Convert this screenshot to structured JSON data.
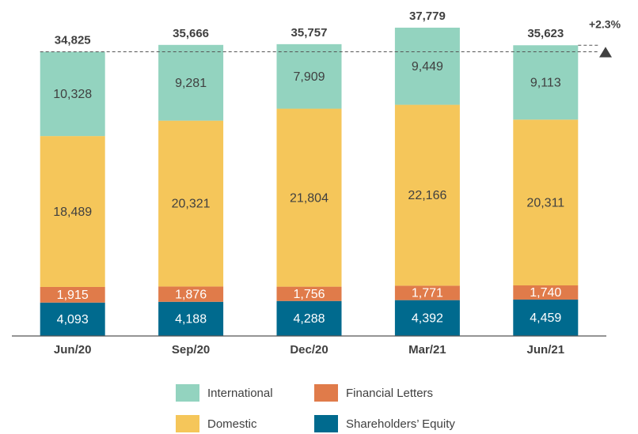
{
  "chart_data": {
    "type": "stacked_bar",
    "categories": [
      "Jun/20",
      "Sep/20",
      "Dec/20",
      "Mar/21",
      "Jun/21"
    ],
    "series": [
      {
        "name": "Shareholders’ Equity",
        "color": "#006a8e",
        "values": [
          4093,
          4188,
          4288,
          4392,
          4459
        ],
        "value_labels": [
          "4,093",
          "4,188",
          "4,288",
          "4,392",
          "4,459"
        ]
      },
      {
        "name": "Financial Letters",
        "color": "#e07b4a",
        "values": [
          1915,
          1876,
          1756,
          1771,
          1740
        ],
        "value_labels": [
          "1,915",
          "1,876",
          "1,756",
          "1,771",
          "1,740"
        ]
      },
      {
        "name": "Domestic",
        "color": "#f5c65a",
        "values": [
          18489,
          20321,
          21804,
          22166,
          20311
        ],
        "value_labels": [
          "18,489",
          "20,321",
          "21,804",
          "22,166",
          "20,311"
        ]
      },
      {
        "name": "International",
        "color": "#93d3bf",
        "values": [
          10328,
          9281,
          7909,
          9449,
          9113
        ],
        "value_labels": [
          "10,328",
          "9,281",
          "7,909",
          "9,449",
          "9,113"
        ]
      }
    ],
    "totals": [
      34825,
      35666,
      35757,
      37779,
      35623
    ],
    "total_labels": [
      "34,825",
      "35,666",
      "35,757",
      "37,779",
      "35,623"
    ],
    "annotation": "+2.3%"
  }
}
